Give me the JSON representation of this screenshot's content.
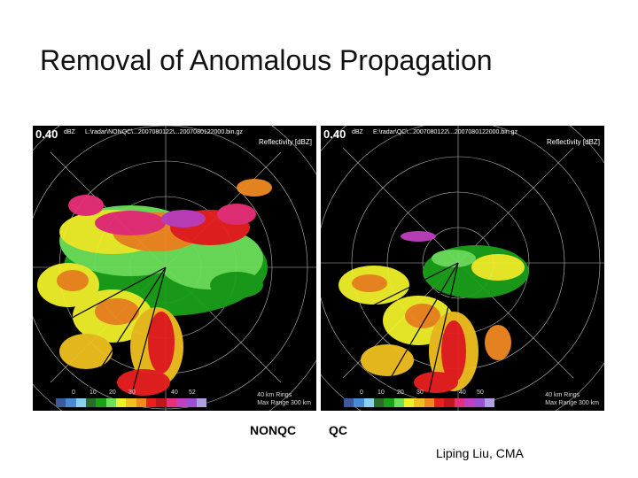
{
  "title": "Removal of Anomalous Propagation",
  "panels": [
    {
      "elevation": "0.40",
      "product": "dBZ",
      "path": "L:\\radar\\NONQC\\...2007080122\\...2007080122000.bin.gz",
      "reflectivity": "Reflectivity [dBZ]",
      "caption": "NONQC",
      "ticks": [
        "0",
        "10",
        "20",
        "30",
        "40",
        "52"
      ],
      "rings_line1": "40 km Rings",
      "rings_line2": "Max Range 300 km"
    },
    {
      "elevation": "0.40",
      "product": "dBZ",
      "path": "E:\\radar\\QC\\...2007080122\\...2007080122000.bin.gz",
      "reflectivity": "Reflectivity [dBZ]",
      "caption": "QC",
      "ticks": [
        "0",
        "10",
        "20",
        "30",
        "40",
        "50"
      ],
      "rings_line1": "40 km Rings",
      "rings_line2": "Max Range 300 km"
    }
  ],
  "colorbar": [
    "#3a5a9a",
    "#4a8ad0",
    "#8bd0ee",
    "#2a6a2a",
    "#1aa01a",
    "#6ce05a",
    "#f0f02a",
    "#f0c020",
    "#f08a20",
    "#e82020",
    "#c01818",
    "#e8307a",
    "#c040c0",
    "#9a50d0",
    "#b0a0e0"
  ],
  "credit": "Liping Liu, CMA"
}
